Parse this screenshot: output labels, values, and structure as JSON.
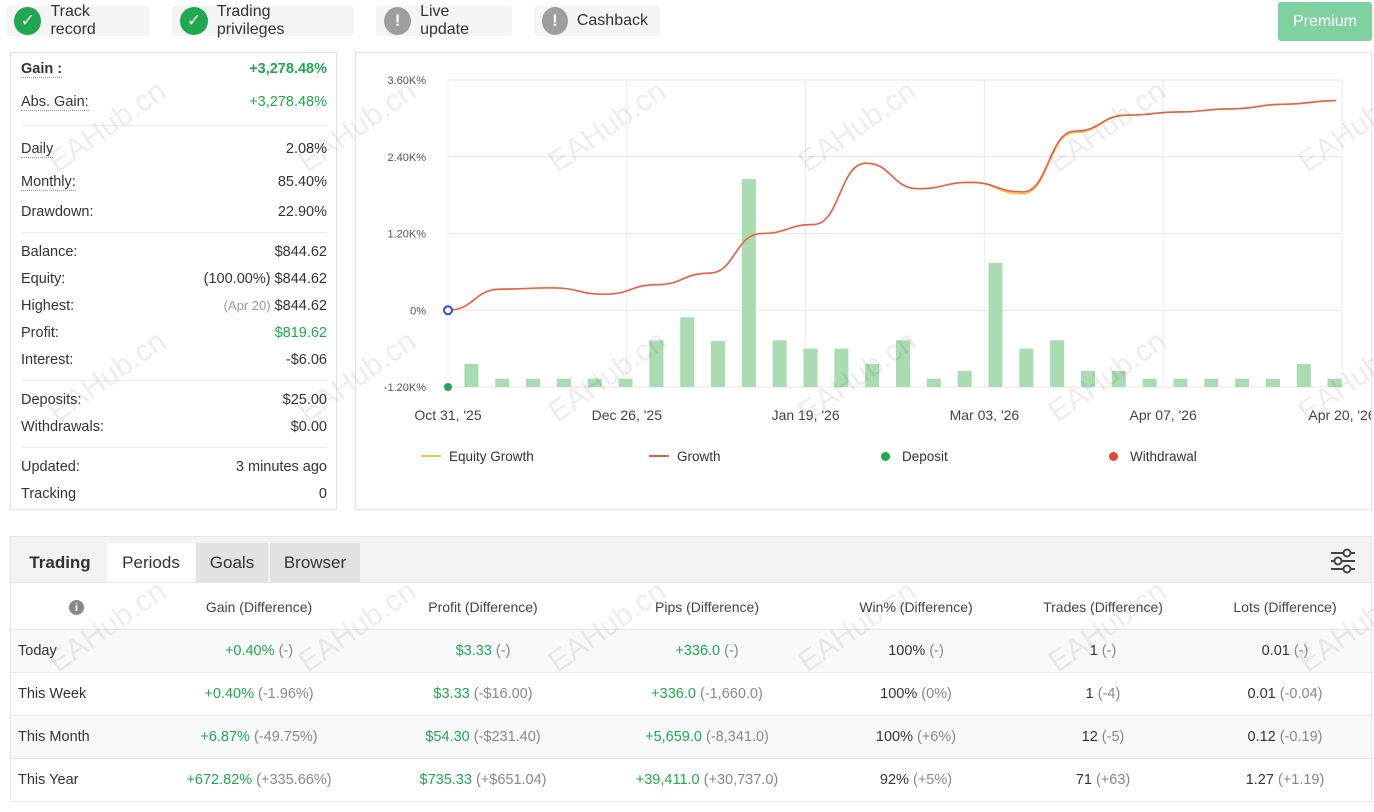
{
  "badges": [
    {
      "label": "Track record",
      "status": "ok"
    },
    {
      "label": "Trading privileges",
      "status": "ok"
    },
    {
      "label": "Live update",
      "status": "warn"
    },
    {
      "label": "Cashback",
      "status": "warn"
    }
  ],
  "premium_label": "Premium",
  "stats": {
    "gain": {
      "label": "Gain :",
      "value": "+3,278.48%"
    },
    "abs_gain": {
      "label": "Abs. Gain:",
      "value": "+3,278.48%"
    },
    "daily": {
      "label": "Daily",
      "value": "2.08%"
    },
    "monthly": {
      "label": "Monthly:",
      "value": "85.40%"
    },
    "drawdown": {
      "label": "Drawdown:",
      "value": "22.90%"
    },
    "balance": {
      "label": "Balance:",
      "value": "$844.62"
    },
    "equity": {
      "label": "Equity:",
      "note": "(100.00%)",
      "value": "$844.62"
    },
    "highest": {
      "label": "Highest:",
      "note": "(Apr 20)",
      "value": "$844.62"
    },
    "profit": {
      "label": "Profit:",
      "value": "$819.62"
    },
    "interest": {
      "label": "Interest:",
      "value": "-$6.06"
    },
    "deposits": {
      "label": "Deposits:",
      "value": "$25.00"
    },
    "withdrawals": {
      "label": "Withdrawals:",
      "value": "$0.00"
    },
    "updated": {
      "label": "Updated:",
      "value": "3 minutes ago"
    },
    "tracking": {
      "label": "Tracking",
      "value": "0"
    }
  },
  "chart_data": {
    "type": "line",
    "y_tick_labels": [
      "3.60K%",
      "2.40K%",
      "1.20K%",
      "0%",
      "-1.20K%"
    ],
    "y_ticks": [
      3600,
      2400,
      1200,
      0,
      -1200
    ],
    "ylim": [
      -1200,
      3600
    ],
    "x_tick_labels": [
      "Oct 31, '25",
      "Dec 26, '25",
      "Jan 19, '26",
      "Mar 03, '26",
      "Apr 07, '26",
      "Apr 20, '26"
    ],
    "x": [
      "Oct 31, '25",
      "Nov 12, '25",
      "Nov 28, '25",
      "Dec 14, '25",
      "Dec 26, '25",
      "Jan 03, '26",
      "Jan 08, '26",
      "Jan 14, '26",
      "Jan 19, '26",
      "Jan 28, '26",
      "Feb 10, '26",
      "Feb 22, '26",
      "Mar 03, '26",
      "Mar 14, '26",
      "Mar 28, '26",
      "Apr 07, '26",
      "Apr 14, '26",
      "Apr 20, '26"
    ],
    "series": [
      {
        "name": "Growth",
        "color": "#e8604c",
        "values": [
          0,
          330,
          350,
          250,
          400,
          580,
          1200,
          1340,
          2300,
          1900,
          2000,
          1850,
          2800,
          3050,
          3100,
          3150,
          3220,
          3278
        ]
      },
      {
        "name": "Equity Growth",
        "color": "#f5c342",
        "values": [
          0,
          330,
          350,
          250,
          400,
          580,
          1200,
          1340,
          2300,
          1900,
          2000,
          1820,
          2780,
          3050,
          3100,
          3150,
          3220,
          3278
        ]
      }
    ],
    "bars": [
      360,
      130,
      130,
      130,
      130,
      130,
      730,
      1090,
      720,
      3250,
      730,
      600,
      600,
      360,
      730,
      130,
      250,
      1940,
      600,
      730,
      250,
      250,
      130,
      130,
      130,
      130,
      130,
      360,
      130
    ],
    "legend": [
      {
        "name": "Equity Growth",
        "kind": "line",
        "color": "#f5c342"
      },
      {
        "name": "Growth",
        "kind": "line",
        "color": "#e8604c"
      },
      {
        "name": "Deposit",
        "kind": "dot",
        "color": "#1fa84f"
      },
      {
        "name": "Withdrawal",
        "kind": "dot",
        "color": "#e0483b"
      }
    ],
    "grid": true
  },
  "tabs": [
    {
      "label": "Trading",
      "state": "plain"
    },
    {
      "label": "Periods",
      "state": "active"
    },
    {
      "label": "Goals",
      "state": "grey"
    },
    {
      "label": "Browser",
      "state": "grey"
    }
  ],
  "table": {
    "headers": [
      "Gain (Difference)",
      "Profit (Difference)",
      "Pips (Difference)",
      "Win% (Difference)",
      "Trades (Difference)",
      "Lots (Difference)"
    ],
    "rows": [
      {
        "period": "Today",
        "gain": "+0.40%",
        "gain_d": "(-)",
        "profit": "$3.33",
        "profit_d": "(-)",
        "pips": "+336.0",
        "pips_d": "(-)",
        "win": "100%",
        "win_d": "(-)",
        "trades": "1",
        "trades_d": "(-)",
        "lots": "0.01",
        "lots_d": "(-)"
      },
      {
        "period": "This Week",
        "gain": "+0.40%",
        "gain_d": "(-1.96%)",
        "profit": "$3.33",
        "profit_d": "(-$16.00)",
        "pips": "+336.0",
        "pips_d": "(-1,660.0)",
        "win": "100%",
        "win_d": "(0%)",
        "trades": "1",
        "trades_d": "(-4)",
        "lots": "0.01",
        "lots_d": "(-0.04)"
      },
      {
        "period": "This Month",
        "gain": "+6.87%",
        "gain_d": "(-49.75%)",
        "profit": "$54.30",
        "profit_d": "(-$231.40)",
        "pips": "+5,659.0",
        "pips_d": "(-8,341.0)",
        "win": "100%",
        "win_d": "(+6%)",
        "trades": "12",
        "trades_d": "(-5)",
        "lots": "0.12",
        "lots_d": "(-0.19)"
      },
      {
        "period": "This Year",
        "gain": "+672.82%",
        "gain_d": "(+335.66%)",
        "profit": "$735.33",
        "profit_d": "(+$651.04)",
        "pips": "+39,411.0",
        "pips_d": "(+30,737.0)",
        "win": "92%",
        "win_d": "(+5%)",
        "trades": "71",
        "trades_d": "(+63)",
        "lots": "1.27",
        "lots_d": "(+1.19)"
      }
    ]
  },
  "watermark": "EAHub.cn"
}
